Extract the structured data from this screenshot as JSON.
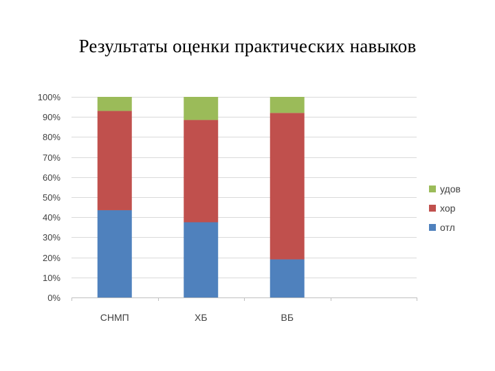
{
  "slide": {
    "title": "Результаты оценки практических навыков"
  },
  "chart_data": {
    "type": "bar",
    "stacked": "percent",
    "title": "",
    "xlabel": "",
    "ylabel": "",
    "categories": [
      "СНМП",
      "ХБ",
      "ВБ"
    ],
    "series": [
      {
        "name": "отл",
        "color": "#4F81BD",
        "values": [
          43.5,
          37.5,
          19
        ]
      },
      {
        "name": "хор",
        "color": "#C0504D",
        "values": [
          49.5,
          51,
          73
        ]
      },
      {
        "name": "удов",
        "color": "#9BBB59",
        "values": [
          7,
          11.5,
          8
        ]
      }
    ],
    "y_ticks": [
      "0%",
      "10%",
      "20%",
      "30%",
      "40%",
      "50%",
      "60%",
      "70%",
      "80%",
      "90%",
      "100%"
    ],
    "ylim": [
      0,
      100
    ],
    "grid": true,
    "legend_position": "right",
    "legend_order": [
      "удов",
      "хор",
      "отл"
    ]
  }
}
